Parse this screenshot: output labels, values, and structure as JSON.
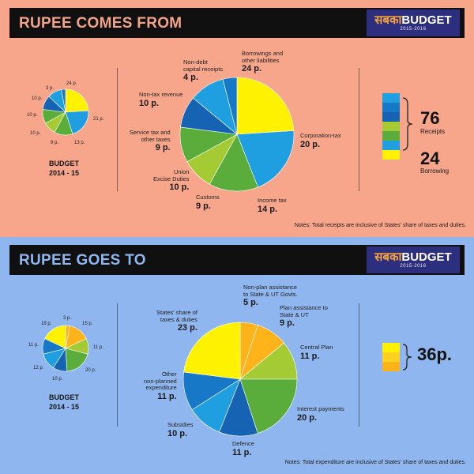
{
  "logo": {
    "brand_hi": "सबका",
    "brand": "BUDGET",
    "years": "2015-2016"
  },
  "colors": {
    "yellow": "#fff200",
    "lightgreen": "#a4cb33",
    "green": "#5aad3b",
    "lightblue": "#1f9ee0",
    "blue": "#1878c8",
    "darkblue": "#1663b3",
    "orange": "#ffb31a",
    "peach": "#f8a68b",
    "sky": "#8fb6ee",
    "navy": "#2d2e7d"
  },
  "top": {
    "title": "RUPEE COMES FROM",
    "budget_label": "BUDGET",
    "budget_year": "2014 - 15",
    "note": "Notes: Total receipts are inclusive of States' share of taxes and duties.",
    "small_labels": [
      "24 p.",
      "21 p.",
      "13 p.",
      "9 p.",
      "10 p.",
      "10 p.",
      "10 p.",
      "3 p."
    ],
    "summary": [
      {
        "value": "76",
        "label": "Receipts"
      },
      {
        "value": "24",
        "label": "Borrowing"
      }
    ]
  },
  "bottom": {
    "title": "RUPEE GOES TO",
    "budget_label": "BUDGET",
    "budget_year": "2014 - 15",
    "note": "Notes: Total expenditure are inclusive of States' share of taxes and duties.",
    "small_labels": [
      "3 p.",
      "15 p.",
      "11 p.",
      "20 p.",
      "10 p.",
      "12 p.",
      "11 p.",
      "18 p."
    ],
    "summary": {
      "value": "36p."
    }
  },
  "chart_data": [
    {
      "type": "pie",
      "title": "RUPEE COMES FROM",
      "categories": [
        "Borrowings and other liabilities",
        "Corporation-tax",
        "Income tax",
        "Customs",
        "Union Excise Duties",
        "Service tax and other taxes",
        "Non-tax revenue",
        "Non-debt capital receipts"
      ],
      "values": [
        24,
        20,
        14,
        9,
        10,
        9,
        10,
        4
      ],
      "value_labels": [
        "24 p.",
        "20 p.",
        "14 p.",
        "9 p.",
        "10 p.",
        "9 p.",
        "10 p.",
        "4 p."
      ],
      "label_lines": [
        [
          "Borrowings and",
          "other liabilities"
        ],
        [
          "Corporation-tax"
        ],
        [
          "Income tax"
        ],
        [
          "Customs"
        ],
        [
          "Union",
          "Excise Duties"
        ],
        [
          "Service tax and",
          "other taxes"
        ],
        [
          "Non-tax revenue"
        ],
        [
          "Non-debt",
          "capital receipts"
        ]
      ],
      "colors": [
        "#fff200",
        "#1f9ee0",
        "#5aad3b",
        "#a4cb33",
        "#5aad3b",
        "#1663b3",
        "#1f9ee0",
        "#1878c8"
      ]
    },
    {
      "type": "pie",
      "title": "BUDGET 2014 - 15",
      "values": [
        24,
        21,
        13,
        9,
        10,
        10,
        10,
        3
      ],
      "value_labels": [
        "24 p.",
        "21 p.",
        "13 p.",
        "9 p.",
        "10 p.",
        "10 p.",
        "10 p.",
        "3 p."
      ],
      "colors": [
        "#fff200",
        "#1f9ee0",
        "#5aad3b",
        "#a4cb33",
        "#5aad3b",
        "#1663b3",
        "#1f9ee0",
        "#1878c8"
      ]
    },
    {
      "type": "pie",
      "title": "RUPEE GOES TO",
      "categories": [
        "Non-plan assistance to State & UT Govts.",
        "Plan assistance to State & UT",
        "Central Plan",
        "Interest payments",
        "Defence",
        "Subsidies",
        "Other non-planned expenditure",
        "States' share of taxes & duties"
      ],
      "values": [
        5,
        9,
        11,
        20,
        11,
        10,
        11,
        23
      ],
      "value_labels": [
        "5 p.",
        "9 p.",
        "11 p.",
        "20 p.",
        "11 p.",
        "10 p.",
        "11 p.",
        "23 p."
      ],
      "label_lines": [
        [
          "Non-plan assistance",
          "to State & UT Govts."
        ],
        [
          "Plan assistance to",
          "State & UT"
        ],
        [
          "Central Plan"
        ],
        [
          "Interest payments"
        ],
        [
          "Defence"
        ],
        [
          "Subsidies"
        ],
        [
          "Other",
          "non-planned",
          "expenditure"
        ],
        [
          "States' share of",
          "taxes & duties"
        ]
      ],
      "colors": [
        "#ffb31a",
        "#ffb31a",
        "#a4cb33",
        "#5aad3b",
        "#1663b3",
        "#1f9ee0",
        "#1878c8",
        "#fff200"
      ]
    },
    {
      "type": "pie",
      "title": "BUDGET 2014 - 15",
      "values": [
        3,
        15,
        11,
        20,
        10,
        12,
        11,
        18
      ],
      "value_labels": [
        "3 p.",
        "15 p.",
        "11 p.",
        "20 p.",
        "10 p.",
        "12 p.",
        "11 p.",
        "18 p."
      ],
      "colors": [
        "#ffb31a",
        "#ffb31a",
        "#a4cb33",
        "#5aad3b",
        "#1663b3",
        "#1f9ee0",
        "#1878c8",
        "#fff200"
      ]
    }
  ]
}
